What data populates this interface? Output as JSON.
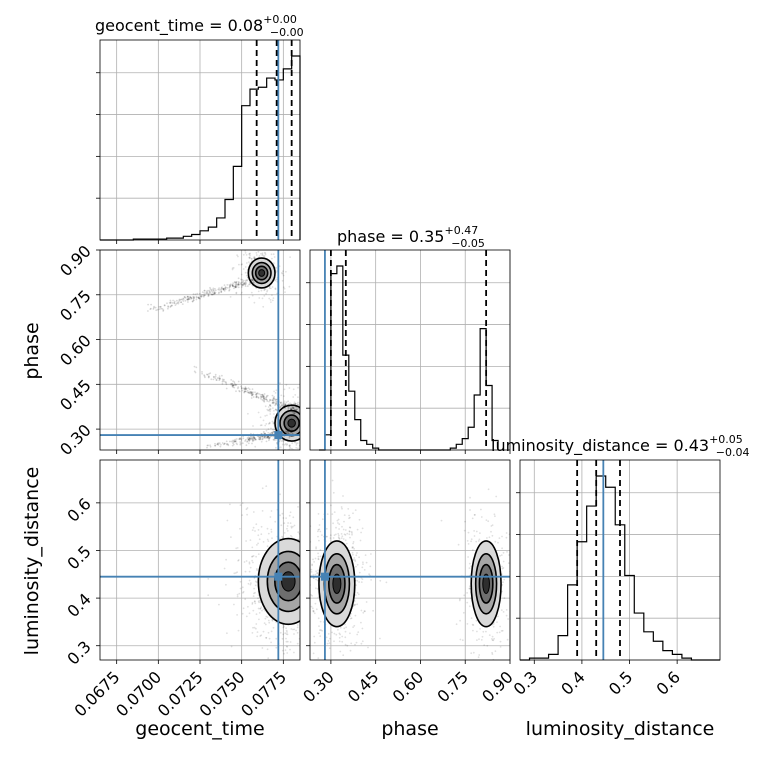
{
  "chart_data": {
    "type": "corner",
    "parameters": [
      "geocent_time",
      "phase",
      "luminosity_distance"
    ],
    "truth_color": "#4682b4",
    "hist_color": "#000000",
    "grid": true,
    "titles": [
      {
        "label": "geocent_time = 0.08",
        "plus": "+0.00",
        "minus": "−0.00"
      },
      {
        "label": "phase = 0.35",
        "plus": "+0.47",
        "minus": "−0.05"
      },
      {
        "label": "luminosity_distance = 0.43",
        "plus": "+0.05",
        "minus": "−0.04"
      }
    ],
    "axes": {
      "geocent_time": {
        "range": [
          0.0665,
          0.0785
        ],
        "ticks": [
          0.0675,
          0.07,
          0.0725,
          0.075,
          0.0775
        ],
        "tick_labels": [
          "0.0675",
          "0.0700",
          "0.0725",
          "0.0750",
          "0.0775"
        ],
        "xlabel": "geocent_time"
      },
      "phase": {
        "range": [
          0.23,
          0.9
        ],
        "ticks": [
          0.3,
          0.45,
          0.6,
          0.75,
          0.9
        ],
        "tick_labels": [
          "0.30",
          "0.45",
          "0.60",
          "0.75",
          "0.90"
        ],
        "xlabel": "phase",
        "ylabel": "phase"
      },
      "luminosity_distance": {
        "range": [
          0.27,
          0.69
        ],
        "ticks": [
          0.3,
          0.4,
          0.5,
          0.6
        ],
        "tick_labels": [
          "0.3",
          "0.4",
          "0.5",
          "0.6"
        ],
        "xlabel": "luminosity_distance",
        "ylabel": "luminosity_distance"
      }
    },
    "truths": {
      "geocent_time": 0.0772,
      "phase": 0.28,
      "luminosity_distance": 0.445
    },
    "quantiles": {
      "geocent_time": [
        0.0759,
        0.0771,
        0.078
      ],
      "phase": [
        0.3,
        0.35,
        0.82
      ],
      "luminosity_distance": [
        0.39,
        0.43,
        0.48
      ]
    },
    "histograms": {
      "geocent_time": {
        "bin_edges": [
          0.0665,
          0.067,
          0.0675,
          0.068,
          0.0685,
          0.069,
          0.0695,
          0.07,
          0.0705,
          0.071,
          0.0715,
          0.072,
          0.0725,
          0.073,
          0.0735,
          0.074,
          0.0745,
          0.075,
          0.0755,
          0.076,
          0.0765,
          0.077,
          0.0775,
          0.078,
          0.0785
        ],
        "counts": [
          0,
          0,
          0,
          0,
          0.5,
          0.5,
          0.5,
          0.5,
          1,
          1,
          2,
          3,
          5,
          7,
          12,
          22,
          40,
          73,
          82,
          83,
          88,
          87,
          93,
          100
        ]
      },
      "phase": {
        "bin_edges": [
          0.26,
          0.28,
          0.3,
          0.32,
          0.34,
          0.36,
          0.38,
          0.4,
          0.42,
          0.44,
          0.46,
          0.48,
          0.5,
          0.52,
          0.54,
          0.56,
          0.58,
          0.6,
          0.62,
          0.64,
          0.66,
          0.68,
          0.7,
          0.72,
          0.74,
          0.76,
          0.78,
          0.8,
          0.82,
          0.84,
          0.86
        ],
        "counts": [
          0,
          8,
          93,
          97,
          50,
          31,
          16,
          5,
          3,
          1,
          0,
          0,
          0,
          0,
          0,
          0,
          0,
          0,
          0,
          0,
          0,
          0,
          1,
          3,
          6,
          12,
          29,
          64,
          34,
          5
        ]
      },
      "luminosity_distance": {
        "bin_edges": [
          0.27,
          0.29,
          0.31,
          0.33,
          0.35,
          0.37,
          0.39,
          0.41,
          0.43,
          0.45,
          0.47,
          0.49,
          0.51,
          0.53,
          0.55,
          0.57,
          0.59,
          0.61,
          0.63,
          0.65,
          0.67,
          0.69
        ],
        "counts": [
          0,
          1,
          1,
          3,
          13,
          40,
          63,
          82,
          98,
          92,
          72,
          45,
          25,
          15,
          10,
          5,
          3,
          1,
          0,
          0,
          0
        ]
      }
    },
    "density_blobs": [
      {
        "x_param": "geocent_time",
        "y_param": "phase",
        "center": [
          0.0762,
          0.823
        ],
        "spread": [
          0.0004,
          0.025
        ],
        "weight": 0.35
      },
      {
        "x_param": "geocent_time",
        "y_param": "phase",
        "center": [
          0.078,
          0.32
        ],
        "spread": [
          0.0005,
          0.03
        ],
        "weight": 0.65
      },
      {
        "x_param": "geocent_time",
        "y_param": "luminosity_distance",
        "center": [
          0.0778,
          0.435
        ],
        "spread": [
          0.0009,
          0.045
        ],
        "weight": 1
      },
      {
        "x_param": "phase",
        "y_param": "luminosity_distance",
        "center": [
          0.32,
          0.43
        ],
        "spread": [
          0.03,
          0.045
        ],
        "weight": 0.62
      },
      {
        "x_param": "phase",
        "y_param": "luminosity_distance",
        "center": [
          0.82,
          0.43
        ],
        "spread": [
          0.025,
          0.045
        ],
        "weight": 0.38
      }
    ]
  }
}
